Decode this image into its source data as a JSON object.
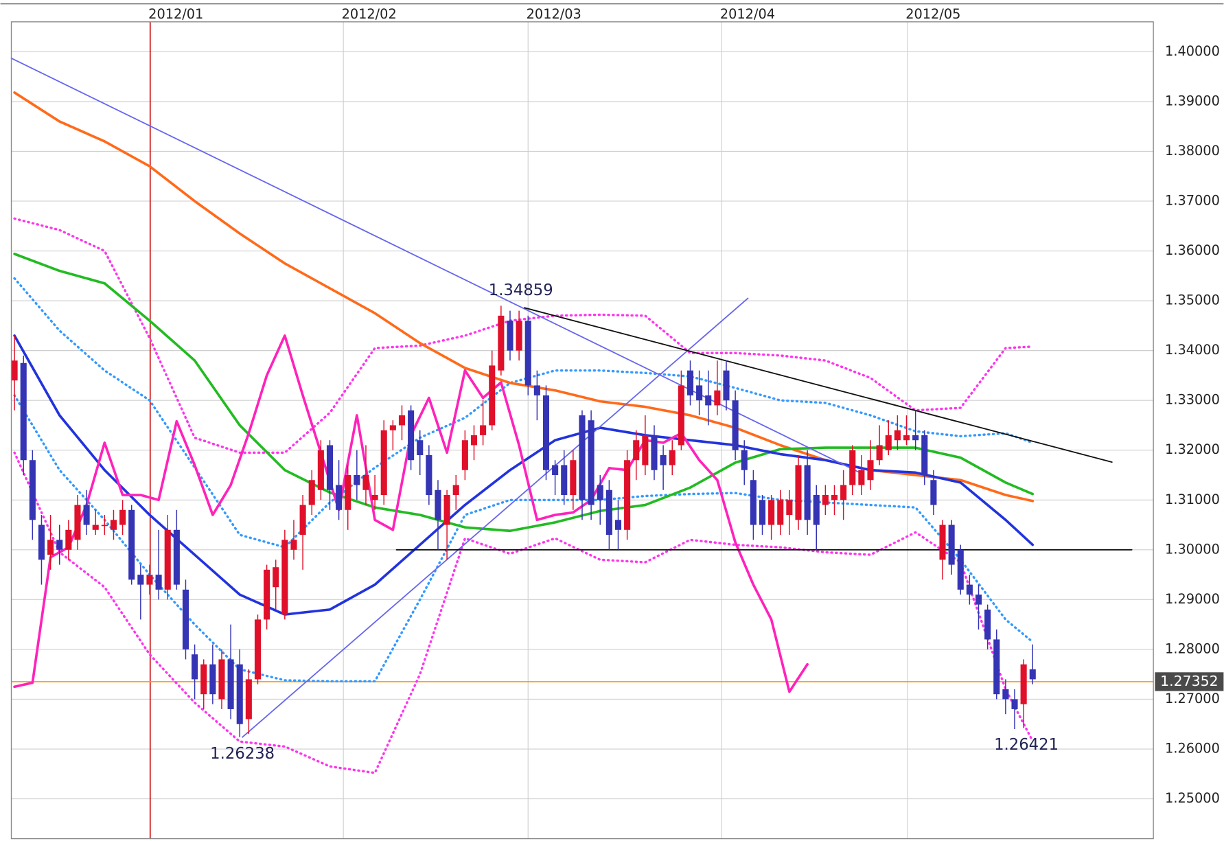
{
  "chart_data": {
    "type": "candlestick",
    "up_color": "#e0102a",
    "down_color": "#3434b4",
    "xlim": [
      -0.35,
      126.4
    ],
    "ylim": [
      1.242,
      1.406
    ],
    "grid": true,
    "xticks": [
      {
        "value": 15.06,
        "label": "2012/01"
      },
      {
        "value": 36.5,
        "label": "2012/02"
      },
      {
        "value": 57,
        "label": "2012/03"
      },
      {
        "value": 78.5,
        "label": "2012/04"
      },
      {
        "value": 99.1,
        "label": "2012/05"
      }
    ],
    "yticks": [
      {
        "value": 1.25,
        "label": "1.25000"
      },
      {
        "value": 1.26,
        "label": "1.26000"
      },
      {
        "value": 1.27,
        "label": "1.27000"
      },
      {
        "value": 1.28,
        "label": "1.28000"
      },
      {
        "value": 1.29,
        "label": "1.29000"
      },
      {
        "value": 1.3,
        "label": "1.30000"
      },
      {
        "value": 1.31,
        "label": "1.31000"
      },
      {
        "value": 1.32,
        "label": "1.32000"
      },
      {
        "value": 1.33,
        "label": "1.33000"
      },
      {
        "value": 1.34,
        "label": "1.34000"
      },
      {
        "value": 1.35,
        "label": "1.35000"
      },
      {
        "value": 1.36,
        "label": "1.36000"
      },
      {
        "value": 1.37,
        "label": "1.37000"
      },
      {
        "value": 1.38,
        "label": "1.38000"
      },
      {
        "value": 1.39,
        "label": "1.39000"
      },
      {
        "value": 1.4,
        "label": "1.40000"
      }
    ],
    "open": [
      1.334,
      1.3375,
      1.318,
      1.305,
      1.299,
      1.302,
      1.3,
      1.302,
      1.309,
      1.304,
      1.305,
      1.304,
      1.305,
      1.308,
      1.295,
      1.293,
      1.295,
      1.292,
      1.304,
      1.292,
      1.279,
      1.271,
      1.277,
      1.27,
      1.278,
      1.277,
      1.266,
      1.274,
      1.286,
      1.2925,
      1.287,
      1.3,
      1.303,
      1.309,
      1.312,
      1.321,
      1.313,
      1.308,
      1.315,
      1.312,
      1.31,
      1.311,
      1.324,
      1.325,
      1.328,
      1.322,
      1.319,
      1.312,
      1.305,
      1.311,
      1.316,
      1.321,
      1.323,
      1.325,
      1.336,
      1.346,
      1.34,
      1.346,
      1.333,
      1.331,
      1.317,
      1.317,
      1.311,
      1.327,
      1.326,
      1.313,
      1.312,
      1.306,
      1.304,
      1.318,
      1.317,
      1.323,
      1.319,
      1.317,
      1.321,
      1.336,
      1.333,
      1.331,
      1.329,
      1.336,
      1.33,
      1.32,
      1.314,
      1.31,
      1.305,
      1.305,
      1.307,
      1.306,
      1.317,
      1.311,
      1.309,
      1.31,
      1.31,
      1.313,
      1.313,
      1.314,
      1.318,
      1.32,
      1.322,
      1.322,
      1.323,
      1.323,
      1.314,
      1.298,
      1.305,
      1.3,
      1.293,
      1.291,
      1.288,
      1.282,
      1.272,
      1.27,
      1.269,
      1.276
    ],
    "high": [
      1.343,
      1.339,
      1.32,
      1.307,
      1.307,
      1.305,
      1.306,
      1.311,
      1.312,
      1.308,
      1.307,
      1.308,
      1.31,
      1.309,
      1.297,
      1.297,
      1.304,
      1.307,
      1.308,
      1.294,
      1.281,
      1.278,
      1.281,
      1.28,
      1.285,
      1.28,
      1.276,
      1.287,
      1.297,
      1.298,
      1.304,
      1.306,
      1.311,
      1.316,
      1.322,
      1.322,
      1.318,
      1.317,
      1.32,
      1.321,
      1.315,
      1.326,
      1.326,
      1.329,
      1.329,
      1.324,
      1.321,
      1.314,
      1.312,
      1.315,
      1.324,
      1.325,
      1.33,
      1.34,
      1.349,
      1.348,
      1.348,
      1.347,
      1.336,
      1.333,
      1.318,
      1.32,
      1.32,
      1.328,
      1.328,
      1.315,
      1.314,
      1.31,
      1.32,
      1.324,
      1.327,
      1.325,
      1.321,
      1.322,
      1.336,
      1.338,
      1.336,
      1.336,
      1.338,
      1.338,
      1.332,
      1.322,
      1.316,
      1.311,
      1.311,
      1.312,
      1.312,
      1.319,
      1.32,
      1.313,
      1.313,
      1.313,
      1.316,
      1.321,
      1.319,
      1.322,
      1.325,
      1.326,
      1.327,
      1.327,
      1.328,
      1.324,
      1.316,
      1.306,
      1.306,
      1.301,
      1.295,
      1.293,
      1.289,
      1.284,
      1.274,
      1.272,
      1.278,
      1.281
    ],
    "low": [
      1.328,
      1.315,
      1.302,
      1.293,
      1.296,
      1.297,
      1.298,
      1.3,
      1.303,
      1.303,
      1.303,
      1.302,
      1.303,
      1.293,
      1.286,
      1.291,
      1.29,
      1.29,
      1.292,
      1.278,
      1.27,
      1.268,
      1.269,
      1.268,
      1.266,
      1.26238,
      1.263,
      1.273,
      1.284,
      1.288,
      1.286,
      1.298,
      1.296,
      1.307,
      1.31,
      1.308,
      1.306,
      1.304,
      1.31,
      1.309,
      1.308,
      1.309,
      1.32,
      1.322,
      1.316,
      1.315,
      1.309,
      1.3,
      1.298,
      1.308,
      1.314,
      1.318,
      1.321,
      1.324,
      1.335,
      1.338,
      1.338,
      1.331,
      1.326,
      1.314,
      1.311,
      1.309,
      1.308,
      1.306,
      1.306,
      1.305,
      1.3,
      1.3,
      1.302,
      1.314,
      1.315,
      1.314,
      1.312,
      1.315,
      1.32,
      1.329,
      1.327,
      1.325,
      1.327,
      1.328,
      1.318,
      1.313,
      1.302,
      1.303,
      1.302,
      1.303,
      1.303,
      1.304,
      1.303,
      1.3,
      1.307,
      1.307,
      1.306,
      1.311,
      1.311,
      1.312,
      1.317,
      1.319,
      1.32,
      1.321,
      1.32,
      1.313,
      1.307,
      1.294,
      1.295,
      1.291,
      1.289,
      1.284,
      1.28,
      1.27,
      1.267,
      1.264,
      1.26421,
      1.273
    ],
    "close": [
      1.338,
      1.318,
      1.306,
      1.298,
      1.302,
      1.3,
      1.304,
      1.309,
      1.305,
      1.305,
      1.305,
      1.306,
      1.308,
      1.294,
      1.293,
      1.295,
      1.292,
      1.304,
      1.293,
      1.28,
      1.274,
      1.277,
      1.271,
      1.278,
      1.268,
      1.265,
      1.274,
      1.286,
      1.296,
      1.2965,
      1.302,
      1.302,
      1.309,
      1.314,
      1.32,
      1.312,
      1.308,
      1.315,
      1.313,
      1.315,
      1.311,
      1.324,
      1.325,
      1.327,
      1.318,
      1.319,
      1.311,
      1.306,
      1.311,
      1.313,
      1.322,
      1.323,
      1.325,
      1.337,
      1.347,
      1.34,
      1.346,
      1.333,
      1.331,
      1.316,
      1.315,
      1.311,
      1.318,
      1.31,
      1.309,
      1.31,
      1.303,
      1.304,
      1.318,
      1.322,
      1.323,
      1.316,
      1.317,
      1.32,
      1.333,
      1.331,
      1.33,
      1.329,
      1.332,
      1.33,
      1.32,
      1.316,
      1.305,
      1.305,
      1.31,
      1.31,
      1.31,
      1.317,
      1.306,
      1.305,
      1.311,
      1.311,
      1.313,
      1.32,
      1.316,
      1.318,
      1.321,
      1.323,
      1.324,
      1.323,
      1.322,
      1.315,
      1.309,
      1.305,
      1.297,
      1.292,
      1.291,
      1.289,
      1.282,
      1.271,
      1.27,
      1.268,
      1.277,
      1.274
    ],
    "lines": [
      {
        "color": "#ff33ee",
        "style": "dotted",
        "x": [
          0,
          5,
          10,
          15,
          20,
          25,
          30,
          35,
          40,
          45,
          50,
          55,
          60,
          65,
          70,
          75,
          80,
          85,
          90,
          95,
          100,
          105,
          110,
          113
        ],
        "values": [
          1.3665,
          1.3642,
          1.36,
          1.3425,
          1.3225,
          1.3195,
          1.3195,
          1.3275,
          1.3405,
          1.341,
          1.343,
          1.346,
          1.347,
          1.3472,
          1.347,
          1.3395,
          1.3395,
          1.339,
          1.338,
          1.3345,
          1.328,
          1.3285,
          1.3405,
          1.3408
        ]
      },
      {
        "color": "#ff33ee",
        "style": "dotted",
        "x": [
          0,
          5,
          10,
          15,
          20,
          25,
          30,
          35,
          40,
          45,
          50,
          55,
          60,
          65,
          70,
          75,
          80,
          85,
          90,
          95,
          100,
          105,
          110,
          113
        ],
        "values": [
          1.3195,
          1.2995,
          1.2925,
          1.279,
          1.2693,
          1.2615,
          1.2605,
          1.2565,
          1.2552,
          1.275,
          1.3023,
          1.2992,
          1.3023,
          1.298,
          1.2975,
          1.302,
          1.301,
          1.3005,
          1.2995,
          1.299,
          1.3035,
          1.2975,
          1.272,
          1.2616
        ]
      },
      {
        "color": "#3399ff",
        "style": "dotted",
        "x": [
          0,
          5,
          10,
          15,
          20,
          25,
          30,
          35,
          40,
          45,
          50,
          55,
          60,
          65,
          70,
          75,
          80,
          85,
          90,
          95,
          100,
          105,
          110,
          113
        ],
        "values": [
          1.3545,
          1.344,
          1.336,
          1.33,
          1.3165,
          1.303,
          1.3005,
          1.3095,
          1.3165,
          1.3225,
          1.3265,
          1.3335,
          1.336,
          1.336,
          1.3355,
          1.3348,
          1.3325,
          1.33,
          1.3295,
          1.327,
          1.3238,
          1.3228,
          1.3234,
          1.3215
        ]
      },
      {
        "color": "#3399ff",
        "style": "dotted",
        "x": [
          0,
          5,
          10,
          15,
          20,
          25,
          30,
          35,
          40,
          45,
          50,
          55,
          60,
          65,
          70,
          75,
          80,
          85,
          90,
          95,
          100,
          105,
          110,
          113
        ],
        "values": [
          1.331,
          1.316,
          1.306,
          1.295,
          1.285,
          1.276,
          1.2738,
          1.2736,
          1.2736,
          1.29,
          1.307,
          1.31,
          1.31,
          1.31,
          1.3108,
          1.3112,
          1.3114,
          1.31,
          1.3095,
          1.309,
          1.3085,
          1.298,
          1.286,
          1.2815
        ]
      },
      {
        "color": "#ff6a1a",
        "style": "solid",
        "x": [
          0,
          5,
          10,
          15,
          20,
          25,
          30,
          35,
          40,
          45,
          50,
          55,
          60,
          65,
          70,
          75,
          80,
          85,
          90,
          95,
          100,
          105,
          110,
          113
        ],
        "values": [
          1.3918,
          1.386,
          1.382,
          1.377,
          1.37,
          1.3635,
          1.3575,
          1.3525,
          1.3475,
          1.3415,
          1.3365,
          1.3335,
          1.332,
          1.3298,
          1.3287,
          1.327,
          1.3245,
          1.321,
          1.318,
          1.316,
          1.315,
          1.314,
          1.311,
          1.3098
        ]
      },
      {
        "color": "#22bb22",
        "style": "solid",
        "x": [
          0,
          5,
          10,
          15,
          20,
          25,
          30,
          35,
          40,
          45,
          50,
          55,
          60,
          65,
          70,
          75,
          80,
          85,
          90,
          95,
          100,
          105,
          110,
          113
        ],
        "values": [
          1.3594,
          1.356,
          1.3535,
          1.346,
          1.338,
          1.325,
          1.316,
          1.3115,
          1.3085,
          1.307,
          1.3045,
          1.3038,
          1.3055,
          1.3078,
          1.309,
          1.3125,
          1.3175,
          1.3202,
          1.3205,
          1.3205,
          1.3205,
          1.3185,
          1.3135,
          1.3112
        ]
      },
      {
        "color": "#2233dd",
        "style": "solid",
        "x": [
          0,
          5,
          10,
          15,
          20,
          25,
          30,
          35,
          40,
          45,
          50,
          55,
          60,
          65,
          70,
          75,
          80,
          85,
          90,
          95,
          100,
          105,
          110,
          113
        ],
        "values": [
          1.343,
          1.327,
          1.316,
          1.307,
          1.299,
          1.291,
          1.287,
          1.288,
          1.293,
          1.301,
          1.309,
          1.316,
          1.322,
          1.3245,
          1.323,
          1.322,
          1.321,
          1.3192,
          1.318,
          1.316,
          1.3155,
          1.3135,
          1.306,
          1.301
        ]
      },
      {
        "color": "#ff22bb",
        "style": "solid",
        "x": [
          0,
          2,
          4,
          6,
          8,
          10,
          12,
          14,
          16,
          18,
          20,
          22,
          24,
          26,
          28,
          30,
          32,
          34,
          36,
          38,
          40,
          42,
          44,
          46,
          48,
          50,
          52,
          54,
          56,
          58,
          60,
          62,
          64,
          66,
          68,
          70,
          72,
          74,
          76,
          78,
          80,
          82,
          84,
          86,
          88
        ],
        "values": [
          1.2725,
          1.2733,
          1.2985,
          1.3005,
          1.309,
          1.3215,
          1.311,
          1.311,
          1.31,
          1.3258,
          1.317,
          1.307,
          1.313,
          1.3234,
          1.335,
          1.343,
          1.331,
          1.3195,
          1.308,
          1.327,
          1.306,
          1.304,
          1.323,
          1.3305,
          1.3195,
          1.336,
          1.3305,
          1.3336,
          1.321,
          1.306,
          1.307,
          1.3075,
          1.31,
          1.3164,
          1.316,
          1.322,
          1.3215,
          1.3234,
          1.318,
          1.314,
          1.3015,
          1.293,
          1.286,
          1.2715,
          1.277
        ]
      }
    ],
    "trendlines": [
      {
        "color": "#6666ee",
        "x": [
          -0.35,
          93.7
        ],
        "values": [
          1.3987,
          1.3156
        ]
      },
      {
        "color": "#6666ee",
        "x": [
          25.3,
          81.4
        ],
        "values": [
          1.26238,
          1.3505
        ]
      },
      {
        "color": "#111111",
        "x": [
          56.6,
          121.8
        ],
        "values": [
          1.34859,
          1.3176
        ]
      },
      {
        "color": "#111111",
        "x": [
          42.4,
          124
        ],
        "values": [
          1.3,
          1.3
        ]
      }
    ],
    "vlines": [
      {
        "x": 15.06,
        "color": "#cc1111"
      }
    ],
    "last_price": {
      "value": 1.27352,
      "color": "#ff9900"
    },
    "annotations": [
      {
        "x": 56.2,
        "value": 1.34859,
        "position": "above"
      },
      {
        "x": 25.3,
        "value": 1.26238,
        "position": "below"
      },
      {
        "x": 112.3,
        "value": 1.26421,
        "position": "below"
      }
    ]
  }
}
